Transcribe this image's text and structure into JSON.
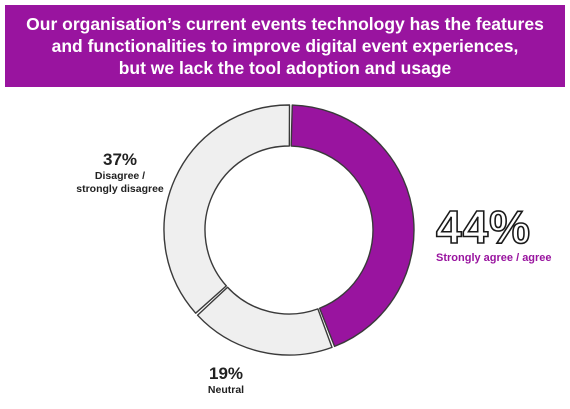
{
  "header": {
    "title_lines": [
      "Our organisation’s current events technology has the features",
      "and functionalities to improve digital event experiences,",
      "but we lack the tool adoption and usage"
    ]
  },
  "chart_data": {
    "type": "pie",
    "title": "Our organisation’s current events technology has the features and functionalities to improve digital event experiences, but we lack the tool adoption and usage",
    "donut": true,
    "slices": [
      {
        "label": "Strongly agree / agree",
        "value": 44,
        "value_label": "44%",
        "color": "#99149f"
      },
      {
        "label": "Neutral",
        "value": 19,
        "value_label": "19%",
        "color": "#efefef"
      },
      {
        "label": "Disagree / strongly disagree",
        "value": 37,
        "value_label": "37%",
        "color": "#efefef"
      }
    ],
    "caption_lines": {
      "Disagree / strongly disagree": [
        "Disagree /",
        "strongly disagree"
      ]
    }
  }
}
